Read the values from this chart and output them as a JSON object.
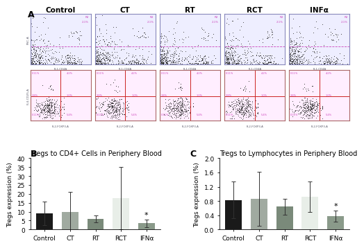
{
  "panel_A_labels": [
    "Control",
    "CT",
    "RT",
    "RCT",
    "INFα"
  ],
  "panel_B_title": "Tregs to CD4+ Cells in Periphery Blood",
  "panel_C_title": "Tregs to Lymphocytes in Periphery Blood",
  "ylabel": "Tregs expression (%)",
  "categories": [
    "Control",
    "CT",
    "RT",
    "RCT",
    "IFNα"
  ],
  "bar_colors": [
    "#1a1a1a",
    "#a0aaa0",
    "#7a8a7a",
    "#e8eee8",
    "#8a9a8a"
  ],
  "B_values": [
    9.0,
    10.0,
    6.0,
    17.5,
    3.5
  ],
  "B_errors": [
    6.5,
    11.0,
    2.0,
    17.5,
    2.0
  ],
  "B_ylim": [
    0,
    40
  ],
  "B_yticks": [
    0,
    5,
    10,
    15,
    20,
    25,
    30,
    35,
    40
  ],
  "C_values": [
    0.83,
    0.86,
    0.64,
    0.92,
    0.38
  ],
  "C_errors": [
    0.52,
    0.75,
    0.22,
    0.42,
    0.15
  ],
  "C_ylim": [
    0,
    2.0
  ],
  "C_yticks": [
    0.0,
    0.4,
    0.8,
    1.2,
    1.6,
    2.0
  ],
  "border_color_top": "#8888bb",
  "border_color_bot": "#aa6666",
  "bg_color_top": "#eeeeff",
  "bg_color_bot": "#ffeeff",
  "scatter_color": "#222222",
  "tick_labelsize": 6.5,
  "axis_labelsize": 6.5,
  "title_fontsize": 7.0,
  "panel_label_fontsize": 9,
  "bar_width": 0.65
}
